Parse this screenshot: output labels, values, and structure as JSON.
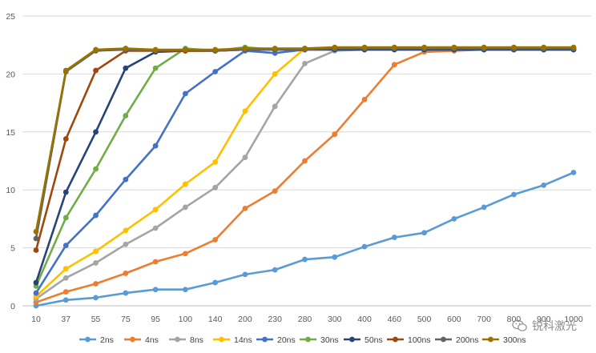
{
  "chart_data": {
    "type": "line",
    "title": "",
    "xlabel": "",
    "ylabel": "",
    "categories": [
      "10",
      "37",
      "55",
      "75",
      "95",
      "100",
      "140",
      "200",
      "230",
      "280",
      "300",
      "400",
      "460",
      "500",
      "600",
      "700",
      "800",
      "900",
      "1000"
    ],
    "ylim": [
      0,
      25
    ],
    "yticks": [
      0,
      5,
      10,
      15,
      20,
      25
    ],
    "grid": "horizontal",
    "legend": "bottom",
    "series": [
      {
        "name": "2ns",
        "color": "#5B9BD5",
        "values": [
          0,
          0.5,
          0.7,
          1.1,
          1.4,
          1.4,
          2.0,
          2.7,
          3.1,
          4.0,
          4.2,
          5.1,
          5.9,
          6.3,
          7.5,
          8.5,
          9.6,
          10.4,
          11.5
        ]
      },
      {
        "name": "4ns",
        "color": "#ED7D31",
        "values": [
          0.3,
          1.2,
          1.9,
          2.8,
          3.8,
          4.5,
          5.7,
          8.4,
          9.9,
          12.5,
          14.8,
          17.8,
          20.8,
          21.9,
          22.0,
          22.1,
          22.1,
          22.1,
          22.1
        ]
      },
      {
        "name": "8ns",
        "color": "#A5A5A5",
        "values": [
          0.6,
          2.4,
          3.7,
          5.3,
          6.7,
          8.5,
          10.2,
          12.8,
          17.2,
          20.9,
          22.0,
          22.1,
          22.1,
          22.1,
          22.1,
          22.1,
          22.1,
          22.1,
          22.1
        ]
      },
      {
        "name": "14ns",
        "color": "#FFC000",
        "values": [
          0.8,
          3.2,
          4.7,
          6.5,
          8.3,
          10.5,
          12.4,
          16.8,
          20.0,
          22.2,
          22.2,
          22.2,
          22.2,
          22.2,
          22.2,
          22.2,
          22.2,
          22.2,
          22.2
        ]
      },
      {
        "name": "20ns",
        "color": "#4472C4",
        "values": [
          1.1,
          5.2,
          7.8,
          10.9,
          13.8,
          18.3,
          20.2,
          22.0,
          21.8,
          22.1,
          22.1,
          22.1,
          22.1,
          22.1,
          22.1,
          22.1,
          22.1,
          22.1,
          22.1
        ]
      },
      {
        "name": "30ns",
        "color": "#70AD47",
        "values": [
          1.7,
          7.6,
          11.8,
          16.4,
          20.5,
          22.2,
          22.0,
          22.3,
          22.1,
          22.2,
          22.2,
          22.2,
          22.2,
          22.2,
          22.2,
          22.2,
          22.2,
          22.2,
          22.2
        ]
      },
      {
        "name": "50ns",
        "color": "#264478",
        "values": [
          2.0,
          9.8,
          15.0,
          20.5,
          21.9,
          22.0,
          22.0,
          22.1,
          22.1,
          22.1,
          22.1,
          22.1,
          22.1,
          22.1,
          22.1,
          22.1,
          22.1,
          22.1,
          22.1
        ]
      },
      {
        "name": "100ns",
        "color": "#9E480E",
        "values": [
          4.8,
          14.4,
          20.3,
          22.0,
          22.0,
          22.0,
          22.0,
          22.1,
          22.1,
          22.1,
          22.2,
          22.2,
          22.2,
          22.2,
          22.2,
          22.2,
          22.2,
          22.2,
          22.2
        ]
      },
      {
        "name": "200ns",
        "color": "#636363",
        "values": [
          5.8,
          20.2,
          22.0,
          22.1,
          22.0,
          22.1,
          22.0,
          22.1,
          22.1,
          22.1,
          22.2,
          22.2,
          22.2,
          22.2,
          22.2,
          22.2,
          22.2,
          22.2,
          22.2
        ]
      },
      {
        "name": "300ns",
        "color": "#997300",
        "values": [
          6.4,
          20.3,
          22.1,
          22.2,
          22.1,
          22.1,
          22.1,
          22.2,
          22.2,
          22.2,
          22.3,
          22.3,
          22.3,
          22.3,
          22.3,
          22.3,
          22.3,
          22.3,
          22.3
        ]
      }
    ]
  },
  "watermark": {
    "icon": "wechat-icon",
    "text": "锐科激光"
  }
}
